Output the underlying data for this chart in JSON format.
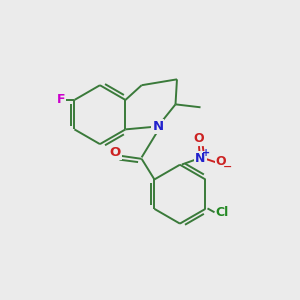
{
  "bg_color": "#ebebeb",
  "bond_color": "#3a7a3a",
  "atom_colors": {
    "F": "#cc00cc",
    "N": "#2222cc",
    "O": "#cc2222",
    "Cl": "#228822",
    "C": "#3a7a3a"
  },
  "bond_width": 1.4,
  "figsize": [
    3.0,
    3.0
  ],
  "dpi": 100
}
